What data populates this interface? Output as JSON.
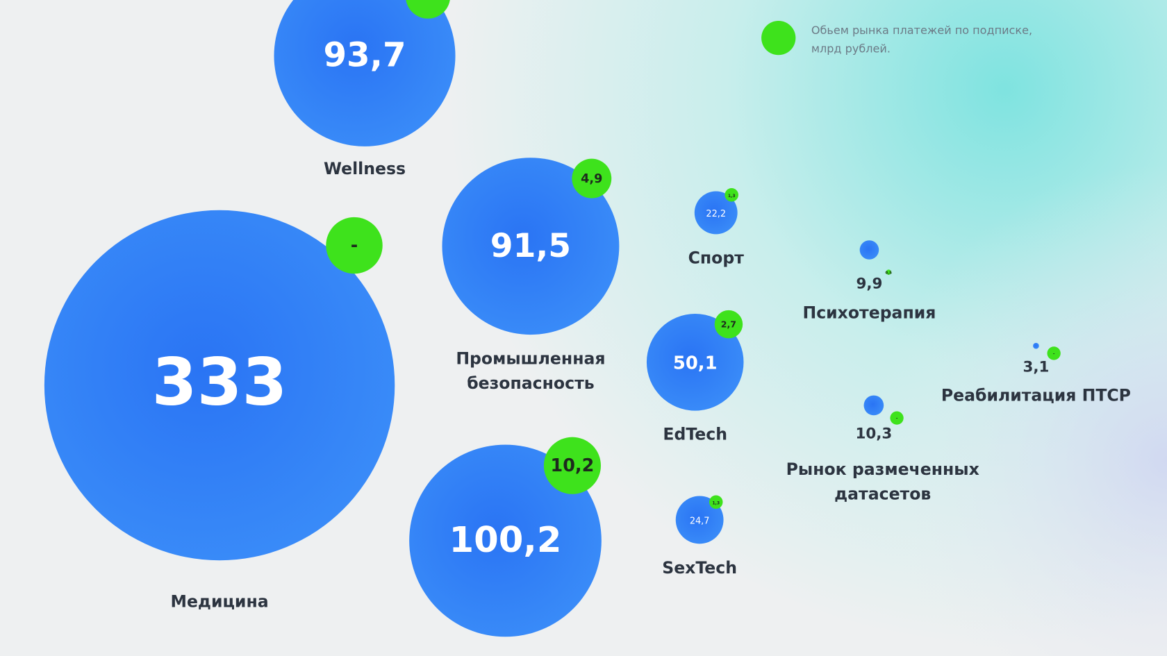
{
  "chart_data": {
    "type": "bubble",
    "legend": "Обьем рынка платежей по подписке, млрд рублей.",
    "blue_color": "#2f7cf6",
    "green_color": "#3ee21c",
    "series": [
      {
        "name": "Wellness",
        "values": [
          93.7
        ],
        "value_labels": [
          "93,7"
        ],
        "sub_values": [
          null
        ]
      },
      {
        "name": "Медицина",
        "values": [
          333
        ],
        "sub_values": [
          null
        ],
        "sub_labels": [
          "-"
        ]
      },
      {
        "name": "Промышленная безопасность",
        "values": [
          91.5
        ],
        "value_labels": [
          "91,5"
        ],
        "sub_values": [
          4.9
        ],
        "sub_labels": [
          "4,9"
        ]
      },
      {
        "name": "Спорт",
        "values": [
          22.2
        ],
        "value_labels": [
          "22,2"
        ],
        "sub_values": [
          1.3
        ],
        "sub_labels": [
          "1,3"
        ]
      },
      {
        "name": "EdTech",
        "values": [
          50.1
        ],
        "value_labels": [
          "50,1"
        ],
        "sub_values": [
          2.7
        ],
        "sub_labels": [
          "2,7"
        ]
      },
      {
        "name": null,
        "values": [
          100.2
        ],
        "value_labels": [
          "100,2"
        ],
        "sub_values": [
          10.2
        ],
        "sub_labels": [
          "10,2"
        ]
      },
      {
        "name": "SexTech",
        "values": [
          24.7
        ],
        "value_labels": [
          "24,7"
        ],
        "sub_values": [
          1.3
        ],
        "sub_labels": [
          "1,3"
        ]
      },
      {
        "name": "Психотерапия",
        "values": [
          9.9
        ],
        "value_labels": [
          "9,9"
        ],
        "sub_values": [
          0.5
        ],
        "sub_labels": [
          "0,5"
        ]
      },
      {
        "name": "Реабилитация ПТСР",
        "values": [
          3.1
        ],
        "value_labels": [
          "3,1"
        ],
        "sub_values": [
          null
        ],
        "sub_labels": [
          "-"
        ]
      },
      {
        "name": "Рынок размеченных датасетов",
        "values": [
          10.3
        ],
        "value_labels": [
          "10,3"
        ],
        "sub_values": [
          null
        ],
        "sub_labels": [
          "-"
        ]
      }
    ]
  }
}
